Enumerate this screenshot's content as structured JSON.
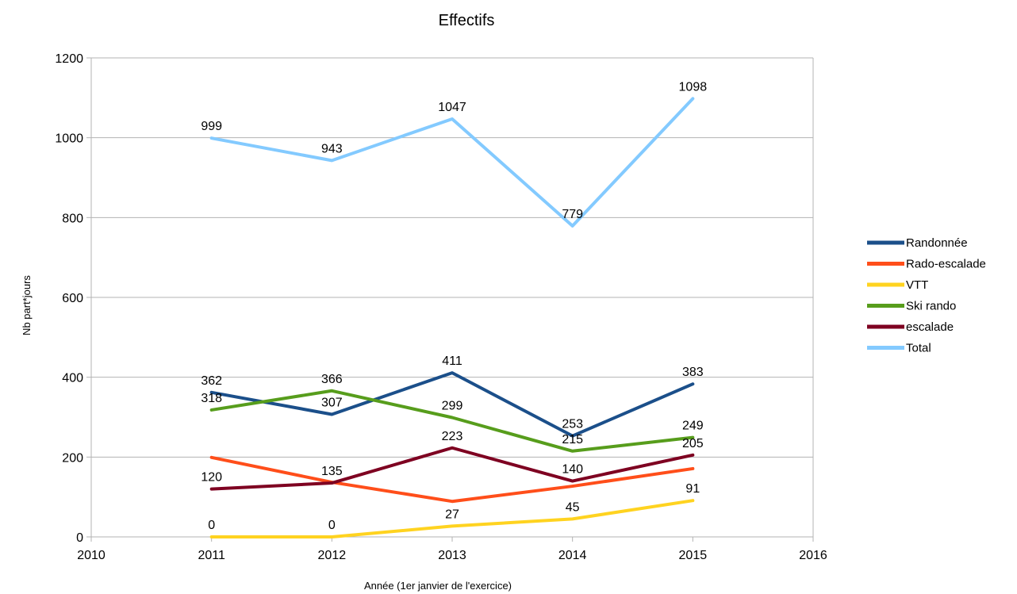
{
  "chart_data": {
    "type": "line",
    "title": "Effectifs",
    "xlabel": "Année (1er janvier de l'exercice)",
    "ylabel": "Nb part*jours",
    "xlim": [
      2010,
      2016
    ],
    "ylim": [
      0,
      1200
    ],
    "x_ticks": [
      "2010",
      "2011",
      "2012",
      "2013",
      "2014",
      "2015",
      "2016"
    ],
    "y_ticks": [
      "0",
      "200",
      "400",
      "600",
      "800",
      "1000",
      "1200"
    ],
    "grid": "horizontal",
    "legend_position": "right",
    "x": [
      2011,
      2012,
      2013,
      2014,
      2015
    ],
    "series": [
      {
        "name": "Randonnée",
        "color": "#1b4f8a",
        "values": [
          362,
          307,
          411,
          253,
          383
        ],
        "labels": [
          "362",
          "307",
          "411",
          "253",
          "383"
        ]
      },
      {
        "name": "Rado-escalade",
        "color": "#ff4e1a",
        "values": [
          199,
          137,
          89,
          127,
          171
        ],
        "labels": null
      },
      {
        "name": "VTT",
        "color": "#ffd320",
        "values": [
          0,
          0,
          27,
          45,
          91
        ],
        "labels": [
          "0",
          "0",
          "27",
          "45",
          "91"
        ]
      },
      {
        "name": "Ski rando",
        "color": "#579d1c",
        "values": [
          318,
          366,
          299,
          215,
          249
        ],
        "labels": [
          "318",
          "366",
          "299",
          "215",
          "249"
        ]
      },
      {
        "name": "escalade",
        "color": "#7e0021",
        "values": [
          120,
          135,
          223,
          140,
          205
        ],
        "labels": [
          "120",
          "135",
          "223",
          "140",
          "205"
        ]
      },
      {
        "name": "Total",
        "color": "#83caff",
        "values": [
          999,
          943,
          1047,
          779,
          1098
        ],
        "labels": [
          "999",
          "943",
          "1047",
          "779",
          "1098"
        ]
      }
    ]
  }
}
